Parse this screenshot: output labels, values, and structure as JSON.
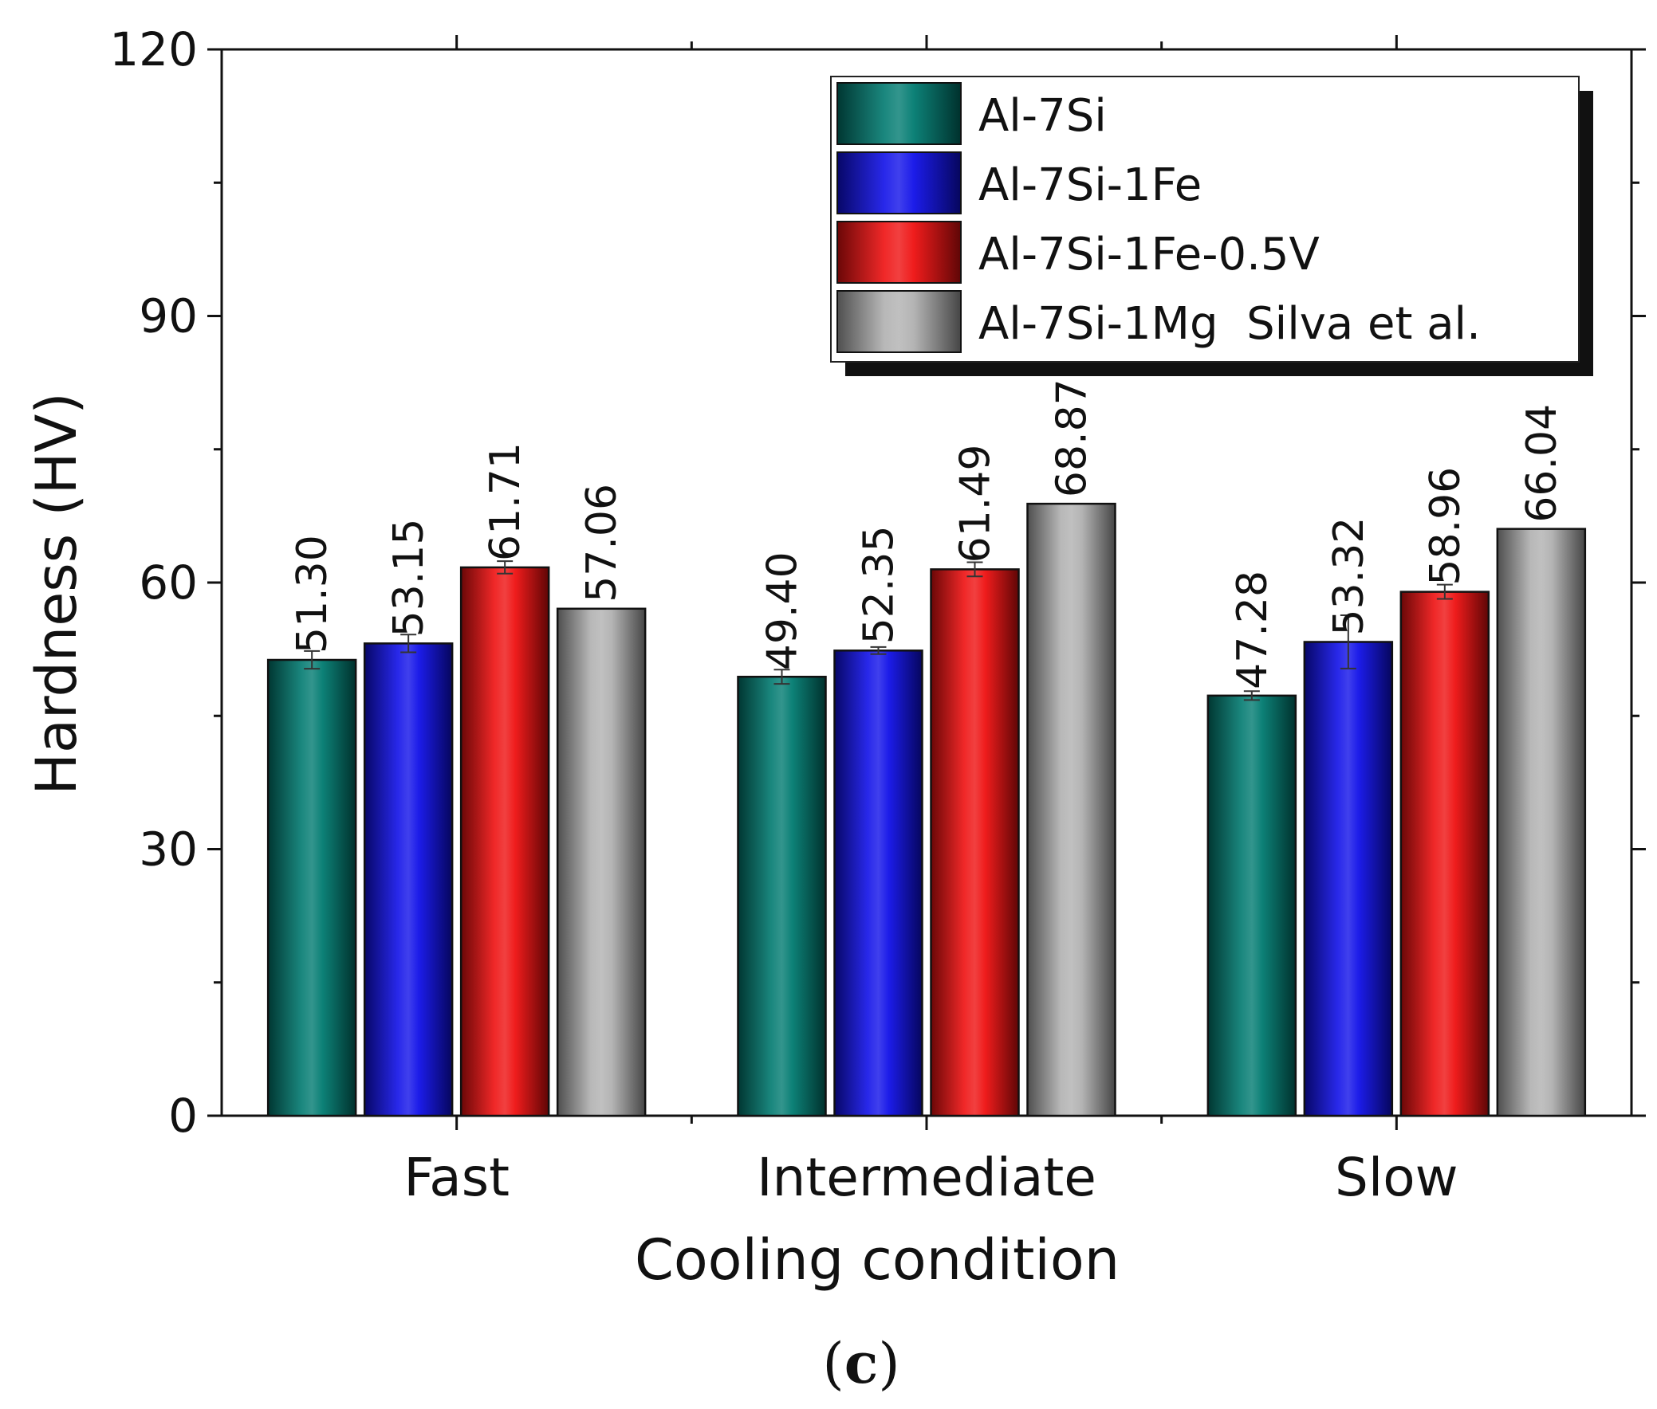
{
  "chart_data": {
    "type": "bar",
    "title": "",
    "xlabel": "Cooling condition",
    "ylabel": "Hardness (HV)",
    "ylim": [
      0,
      120
    ],
    "yticks": [
      0,
      30,
      60,
      90,
      120
    ],
    "categories": [
      "Fast",
      "Intermediate",
      "Slow"
    ],
    "series": [
      {
        "name": "Al-7Si",
        "color": "#007a70",
        "values": [
          51.3,
          49.4,
          47.28
        ],
        "labels": [
          "51.30",
          "49.40",
          "47.28"
        ],
        "errors": [
          1.0,
          0.8,
          0.5
        ]
      },
      {
        "name": "Al-7Si-1Fe",
        "color": "#1010e8",
        "values": [
          53.15,
          52.35,
          53.32
        ],
        "labels": [
          "53.15",
          "52.35",
          "53.32"
        ],
        "errors": [
          1.0,
          0.4,
          3.0
        ]
      },
      {
        "name": "Al-7Si-1Fe-0.5V",
        "color": "#ee1010",
        "values": [
          61.71,
          61.49,
          58.96
        ],
        "labels": [
          "61.71",
          "61.49",
          "58.96"
        ],
        "errors": [
          0.7,
          0.8,
          0.8
        ]
      },
      {
        "name": "Al-7Si-1Mg  Silva et al.",
        "color": "#b0b0b0",
        "values": [
          57.06,
          68.87,
          66.04
        ],
        "labels": [
          "57.06",
          "68.87",
          "66.04"
        ],
        "errors": [
          0,
          0,
          0
        ]
      }
    ],
    "legend_position": "top-right",
    "grid": false,
    "panel_label_parts": [
      "(",
      "c",
      ")"
    ]
  }
}
